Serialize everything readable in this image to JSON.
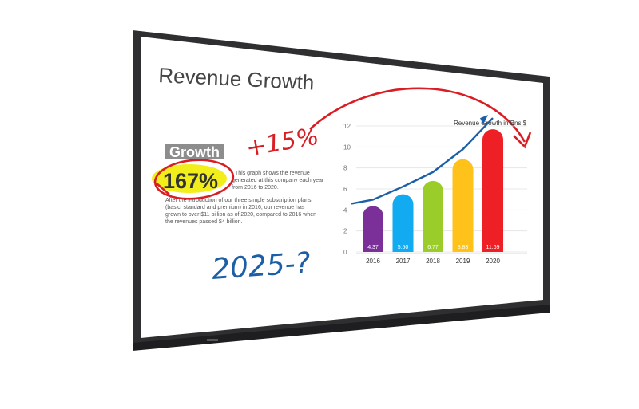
{
  "slide": {
    "title": "Revenue Growth",
    "growth_label": "Growth",
    "growth_value": "167%",
    "paragraph_lines": [
      "This graph shows the revenue",
      "generated at this company each year",
      "from 2016 to 2020.",
      "After the introduction of our three simple subscription plans",
      "(basic, standard and premium) in 2016, our revenue has",
      "grown to over $11 billion as of 2020, compared to 2016 when",
      "the revenues passed $4 billion."
    ]
  },
  "annotations": {
    "plus": "+15%",
    "question": "2025-?"
  },
  "colors": {
    "bezel": "#2f2f31",
    "highlight": "#f2ee1c",
    "ink_red": "#d81e24",
    "ink_blue": "#1c5fa6"
  },
  "chart_data": {
    "type": "bar",
    "title": "Revenue Growth in Bns $",
    "categories": [
      "2016",
      "2017",
      "2018",
      "2019",
      "2020"
    ],
    "values": [
      4.37,
      5.5,
      6.77,
      8.83,
      11.69
    ],
    "value_labels": [
      "4.37",
      "5.50",
      "6.77",
      "8.83",
      "11.69"
    ],
    "bar_colors": [
      "#7b2f98",
      "#12aaf0",
      "#9bcd2a",
      "#ffc21a",
      "#ef1f26"
    ],
    "ylim": [
      0,
      12
    ],
    "y_ticks": [
      "0",
      "2",
      "4",
      "6",
      "8",
      "10",
      "12"
    ],
    "grid": true,
    "trend_line_color": "#1c5fa6"
  }
}
